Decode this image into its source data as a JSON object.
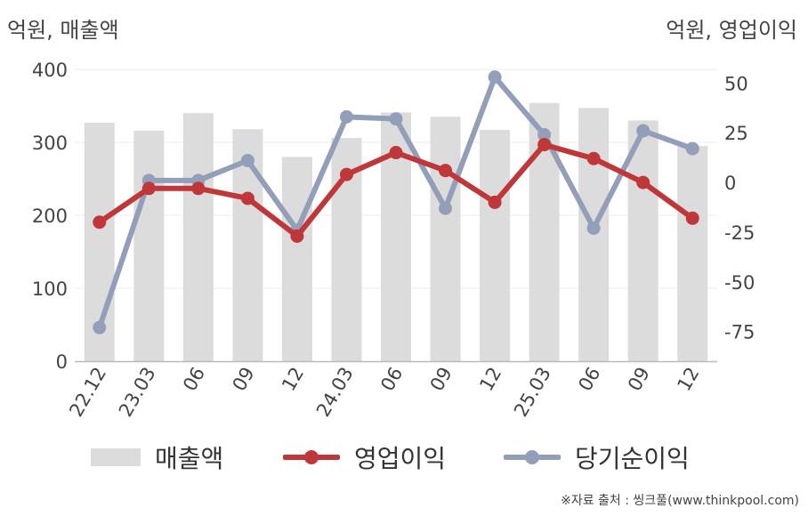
{
  "left_unit_label": "억원, 매출액",
  "right_unit_label": "억원, 영업이익",
  "source": "※자료 출처 : 씽크풀(www.thinkpool.com)",
  "chart_data": {
    "type": "bar",
    "categories": [
      "22.12",
      "23.03",
      "06",
      "09",
      "12",
      "24.03",
      "06",
      "09",
      "12",
      "25.03",
      "06",
      "09",
      "12"
    ],
    "left_axis": {
      "ylim": [
        0,
        400
      ],
      "ticks": [
        0,
        100,
        200,
        300,
        400
      ]
    },
    "right_axis": {
      "ylim": [
        -85,
        60
      ],
      "ticks": [
        -75,
        -50,
        -25,
        0,
        25,
        50
      ]
    },
    "grid": true,
    "legend_position": "bottom",
    "series": [
      {
        "name": "매출액",
        "type": "bar",
        "axis": "left",
        "color": "#dcdcdc",
        "values": [
          327,
          316,
          340,
          318,
          280,
          306,
          341,
          335,
          317,
          354,
          347,
          330,
          295
        ]
      },
      {
        "name": "영업이익",
        "type": "line",
        "axis": "right",
        "color": "#c0373a",
        "values": [
          -20,
          -3,
          -3,
          -8,
          -27,
          4,
          15,
          6,
          -10,
          19,
          12,
          0,
          -18
        ]
      },
      {
        "name": "당기순이익",
        "type": "line",
        "axis": "right",
        "color": "#939fb9",
        "values": [
          -73,
          1,
          1,
          11,
          -24,
          33,
          32,
          -13,
          53,
          24,
          -23,
          26,
          17
        ]
      }
    ]
  }
}
